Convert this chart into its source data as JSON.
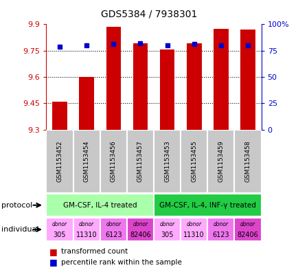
{
  "title": "GDS5384 / 7938301",
  "samples": [
    "GSM1153452",
    "GSM1153454",
    "GSM1153456",
    "GSM1153457",
    "GSM1153453",
    "GSM1153455",
    "GSM1153459",
    "GSM1153458"
  ],
  "transformed_counts": [
    9.46,
    9.6,
    9.885,
    9.79,
    9.755,
    9.79,
    9.875,
    9.87
  ],
  "percentile_ranks": [
    79,
    80,
    81,
    82,
    80,
    81,
    80,
    80
  ],
  "y_min": 9.3,
  "y_max": 9.9,
  "y_ticks": [
    9.3,
    9.45,
    9.6,
    9.75,
    9.9
  ],
  "y_tick_labels": [
    "9.3",
    "9.45",
    "9.6",
    "9.75",
    "9.9"
  ],
  "y2_ticks": [
    0,
    25,
    50,
    75,
    100
  ],
  "y2_tick_labels": [
    "0",
    "25",
    "50",
    "75",
    "100%"
  ],
  "bar_color": "#cc0000",
  "dot_color": "#0000cc",
  "protocols": [
    {
      "label": "GM-CSF, IL-4 treated",
      "start": 0,
      "end": 4,
      "color": "#aaffaa"
    },
    {
      "label": "GM-CSF, IL-4, INF-γ treated",
      "start": 4,
      "end": 8,
      "color": "#22cc44"
    }
  ],
  "individuals": [
    {
      "label": "donor\n305"
    },
    {
      "label": "donor\n11310"
    },
    {
      "label": "donor\n6123"
    },
    {
      "label": "donor\n82406"
    },
    {
      "label": "donor\n305"
    },
    {
      "label": "donor\n11310"
    },
    {
      "label": "donor\n6123"
    },
    {
      "label": "donor\n82406"
    }
  ],
  "individual_colors": [
    "#ffaaff",
    "#ffaaff",
    "#ee77ee",
    "#dd44cc",
    "#ffaaff",
    "#ffaaff",
    "#ee77ee",
    "#dd44cc"
  ],
  "sample_bg_color": "#c8c8c8",
  "left_label_color": "#cc0000",
  "right_label_color": "#0000cc",
  "border_color": "#888888"
}
